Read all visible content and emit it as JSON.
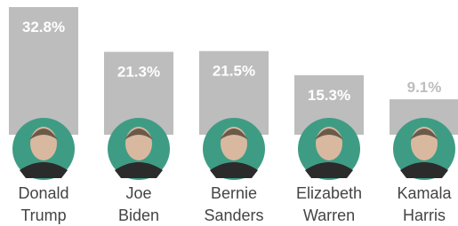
{
  "chart_data": {
    "type": "bar",
    "categories": [
      "Donald Trump",
      "Joe Biden",
      "Bernie Sanders",
      "Elizabeth Warren",
      "Kamala Harris"
    ],
    "values": [
      32.8,
      21.3,
      21.5,
      15.3,
      9.1
    ],
    "value_labels": [
      "32.8%",
      "21.3%",
      "21.5%",
      "15.3%",
      "9.1%"
    ],
    "color": "#bdbdbd"
  }
}
